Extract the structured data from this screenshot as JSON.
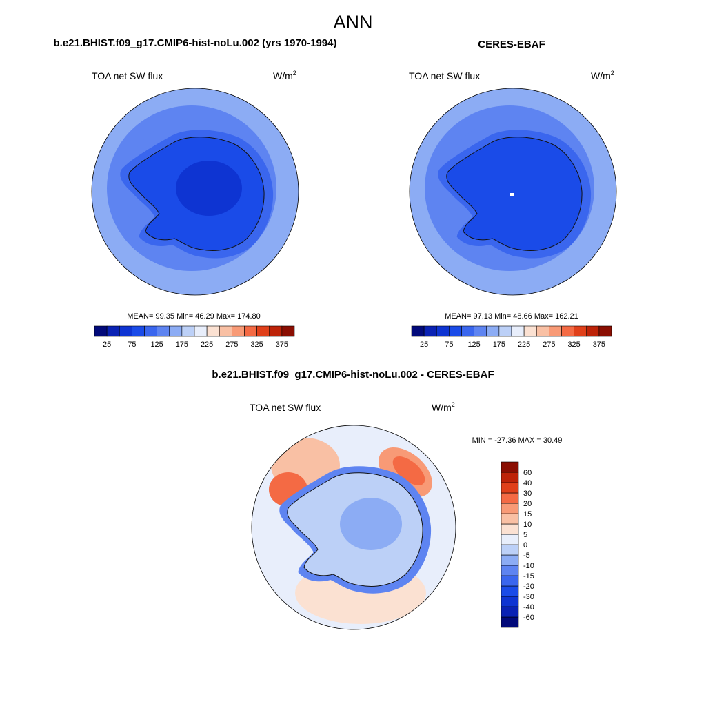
{
  "page_title": "ANN",
  "chart_data": [
    {
      "type": "heatmap",
      "projection": "south-polar-stereographic",
      "title": "b.e21.BHIST.f09_g17.CMIP6-hist-noLu.002 (yrs 1970-1994)",
      "left_label": "TOA net SW flux",
      "units_base": "W/m",
      "units_exp": "2",
      "stats_text": "MEAN=  99.35  Min=  46.29  Max= 174.80",
      "stats": {
        "mean": 99.35,
        "min": 46.29,
        "max": 174.8
      },
      "colorbar": {
        "orientation": "horizontal",
        "levels": [
          25,
          50,
          75,
          100,
          125,
          150,
          175,
          200,
          225,
          250,
          275,
          300,
          325,
          350,
          375
        ],
        "tick_labels": [
          "25",
          "75",
          "125",
          "175",
          "225",
          "275",
          "325",
          "375"
        ],
        "colors": [
          "#020a7a",
          "#0a22b4",
          "#0e34d2",
          "#1a4be8",
          "#3a66ee",
          "#5e84f1",
          "#8cacf4",
          "#bcd0f7",
          "#e8eefb",
          "#fbe1d2",
          "#f9c0a4",
          "#f89a76",
          "#f46a44",
          "#e0401a",
          "#bd2308",
          "#8a0e02"
        ]
      },
      "zones": [
        {
          "region": "outer ocean ring",
          "value": 160
        },
        {
          "region": "mid ocean ring",
          "value": 145
        },
        {
          "region": "inner ocean ring",
          "value": 130
        },
        {
          "region": "coastal sea-ice zone",
          "value": 110
        },
        {
          "region": "antarctic continent",
          "value": 85
        },
        {
          "region": "east antarctic plateau",
          "value": 60
        }
      ]
    },
    {
      "type": "heatmap",
      "projection": "south-polar-stereographic",
      "title": "CERES-EBAF",
      "left_label": "TOA net SW flux",
      "units_base": "W/m",
      "units_exp": "2",
      "stats_text": "MEAN=  97.13  Min=  48.66  Max= 162.21",
      "stats": {
        "mean": 97.13,
        "min": 48.66,
        "max": 162.21
      },
      "colorbar": {
        "orientation": "horizontal",
        "levels": [
          25,
          50,
          75,
          100,
          125,
          150,
          175,
          200,
          225,
          250,
          275,
          300,
          325,
          350,
          375
        ],
        "tick_labels": [
          "25",
          "75",
          "125",
          "175",
          "225",
          "275",
          "325",
          "375"
        ],
        "colors": [
          "#020a7a",
          "#0a22b4",
          "#0e34d2",
          "#1a4be8",
          "#3a66ee",
          "#5e84f1",
          "#8cacf4",
          "#bcd0f7",
          "#e8eefb",
          "#fbe1d2",
          "#f9c0a4",
          "#f89a76",
          "#f46a44",
          "#e0401a",
          "#bd2308",
          "#8a0e02"
        ]
      },
      "zones": [
        {
          "region": "outer ocean ring",
          "value": 160
        },
        {
          "region": "mid ocean ring",
          "value": 145
        },
        {
          "region": "inner ocean ring",
          "value": 130
        },
        {
          "region": "coastal sea-ice zone",
          "value": 110
        },
        {
          "region": "antarctic continent",
          "value": 90
        }
      ]
    },
    {
      "type": "heatmap",
      "projection": "south-polar-stereographic",
      "title": "b.e21.BHIST.f09_g17.CMIP6-hist-noLu.002 - CERES-EBAF",
      "left_label": "TOA net SW flux",
      "units_base": "W/m",
      "units_exp": "2",
      "stats_text": "MIN = -27.36 MAX =  30.49",
      "stats": {
        "min": -27.36,
        "max": 30.49
      },
      "colorbar": {
        "orientation": "vertical",
        "levels": [
          -60,
          -40,
          -30,
          -20,
          -15,
          -10,
          -5,
          0,
          5,
          10,
          15,
          20,
          30,
          40,
          60
        ],
        "tick_labels": [
          "-60",
          "-40",
          "-30",
          "-20",
          "-15",
          "-10",
          "-5",
          "0",
          "5",
          "10",
          "15",
          "20",
          "30",
          "40",
          "60"
        ],
        "colors": [
          "#020a7a",
          "#0a22b4",
          "#0e34d2",
          "#1a4be8",
          "#3a66ee",
          "#5e84f1",
          "#8cacf4",
          "#bcd0f7",
          "#e8eefb",
          "#fbe1d2",
          "#f9c0a4",
          "#f89a76",
          "#f46a44",
          "#e0401a",
          "#bd2308",
          "#8a0e02"
        ]
      },
      "zones": [
        {
          "region": "ocean background",
          "value": 3
        },
        {
          "region": "antarctic continent",
          "value": -4
        },
        {
          "region": "east antarctic interior",
          "value": -7
        },
        {
          "region": "drake passage",
          "value": 22
        },
        {
          "region": "indian ocean sector",
          "value": 25
        },
        {
          "region": "pacific sector",
          "value": 7
        },
        {
          "region": "coastal margin",
          "value": -12
        }
      ]
    }
  ]
}
